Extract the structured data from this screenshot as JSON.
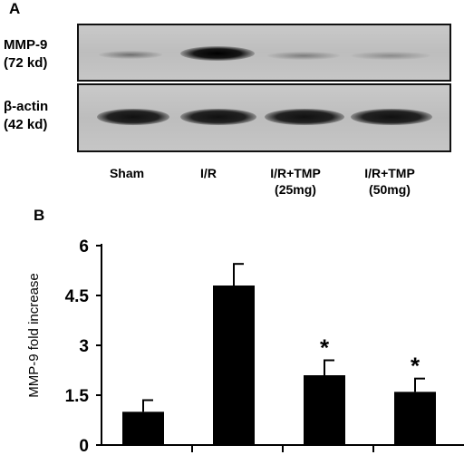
{
  "panel_a": {
    "letter": "A",
    "mmp9_label": [
      "MMP-9",
      "(72 kd)"
    ],
    "actin_label": [
      "β-actin",
      "(42 kd)"
    ],
    "lanes": [
      "Sham",
      "I/R",
      "I/R+TMP\n(25mg)",
      "I/R+TMP\n(50mg)"
    ]
  },
  "panel_b": {
    "letter": "B"
  },
  "chart_data": {
    "type": "bar",
    "categories": [
      "Sham",
      "I/R",
      "I/R+TMP (25mg)",
      "I/R+TMP (50mg)"
    ],
    "values": [
      1.0,
      4.8,
      2.1,
      1.6
    ],
    "errors": [
      0.35,
      0.65,
      0.45,
      0.4
    ],
    "significance": [
      "",
      "",
      "*",
      "*"
    ],
    "ylabel": "MMP-9 fold increase",
    "yticks": [
      0,
      1.5,
      3,
      4.5,
      6
    ],
    "ytick_labels": [
      "0",
      "1.5",
      "3",
      "4.5",
      "6"
    ],
    "ylim": [
      0,
      6
    ],
    "bar_color": "#000000",
    "grid": false
  }
}
